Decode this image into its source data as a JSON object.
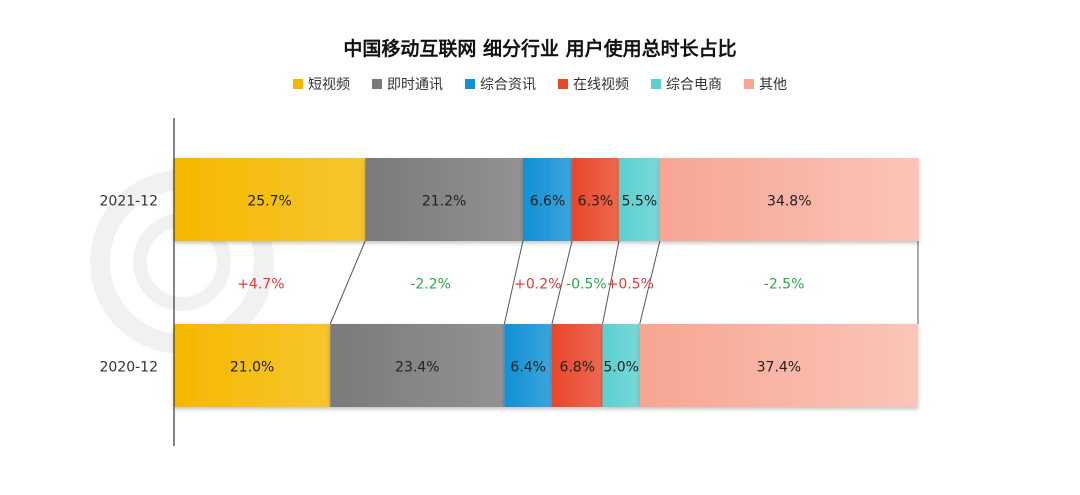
{
  "chart_data": {
    "type": "bar",
    "orientation": "horizontal",
    "stacked": true,
    "percent_stacked": true,
    "title": "中国移动互联网 细分行业 用户使用总时长占比",
    "legend_position": "top",
    "categories": [
      "2021-12",
      "2020-12"
    ],
    "series": [
      {
        "name": "短视频",
        "color": "#f5b800",
        "values": [
          25.7,
          21.0
        ],
        "labels": [
          "25.7%",
          "21.0%"
        ],
        "change": "+4.7%",
        "change_color": "#e53935"
      },
      {
        "name": "即时通讯",
        "color": "#7a7a7a",
        "values": [
          21.2,
          23.4
        ],
        "labels": [
          "21.2%",
          "23.4%"
        ],
        "change": "-2.2%",
        "change_color": "#2eaa4a"
      },
      {
        "name": "综合资讯",
        "color": "#1190d4",
        "values": [
          6.6,
          6.4
        ],
        "labels": [
          "6.6%",
          "6.4%"
        ],
        "change": "+0.2%",
        "change_color": "#e53935"
      },
      {
        "name": "在线视频",
        "color": "#e8472a",
        "values": [
          6.3,
          6.8
        ],
        "labels": [
          "6.3%",
          "6.8%"
        ],
        "change": "-0.5%",
        "change_color": "#2eaa4a"
      },
      {
        "name": "综合电商",
        "color": "#5ccfcf",
        "values": [
          5.5,
          5.0
        ],
        "labels": [
          "5.5%",
          "5.0%"
        ],
        "change": "+0.5%",
        "change_color": "#e53935"
      },
      {
        "name": "其他",
        "color": "#f7a592",
        "values": [
          34.8,
          37.4
        ],
        "labels": [
          "34.8%",
          "37.4%"
        ],
        "change": "-2.5%",
        "change_color": "#2eaa4a"
      }
    ],
    "xlim": [
      0,
      100
    ],
    "grid": false
  }
}
